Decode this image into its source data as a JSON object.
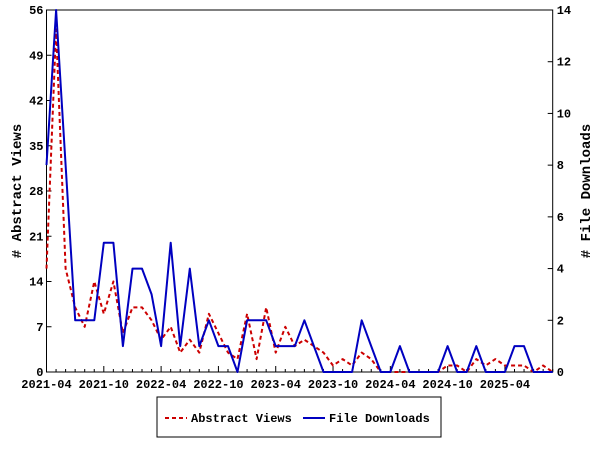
{
  "chart_data": {
    "type": "line",
    "title": "",
    "xlabel": "",
    "ylabel": "# Abstract Views",
    "y2label": "# File Downloads",
    "ylim": [
      0,
      56
    ],
    "y2lim": [
      0,
      14
    ],
    "yticks": [
      0,
      7,
      14,
      21,
      28,
      35,
      42,
      49,
      56
    ],
    "y2ticks": [
      0,
      2,
      4,
      6,
      8,
      10,
      12,
      14
    ],
    "xtick_labels": [
      "2021-04",
      "2021-10",
      "2022-04",
      "2022-10",
      "2023-04",
      "2023-10",
      "2024-04",
      "2024-10",
      "2025-04"
    ],
    "x_start": "2021-04",
    "x_end": "2025-09",
    "grid": false,
    "legend_placement": "bottom",
    "series": [
      {
        "name": "Abstract Views",
        "axis": "left",
        "color": "#cc0000",
        "style": "dashed",
        "values": [
          16,
          53,
          16,
          10,
          7,
          14,
          9,
          14,
          6,
          10,
          10,
          8,
          5,
          7,
          3,
          5,
          3,
          9,
          6,
          3,
          2,
          9,
          2,
          10,
          3,
          7,
          4,
          5,
          4,
          3,
          1,
          2,
          1,
          3,
          2,
          0,
          0,
          0,
          0,
          0,
          0,
          0,
          1,
          1,
          0,
          2,
          1,
          2,
          1,
          1,
          1,
          0,
          1,
          0
        ]
      },
      {
        "name": "File Downloads",
        "axis": "right",
        "color": "#0000c0",
        "style": "solid",
        "values": [
          8,
          14,
          8,
          2,
          2,
          2,
          5,
          5,
          1,
          4,
          4,
          3,
          1,
          5,
          1,
          4,
          1,
          2,
          1,
          1,
          0,
          2,
          2,
          2,
          1,
          1,
          1,
          2,
          1,
          0,
          0,
          0,
          0,
          2,
          1,
          0,
          0,
          1,
          0,
          0,
          0,
          0,
          1,
          0,
          0,
          1,
          0,
          0,
          0,
          1,
          1,
          0,
          0,
          0
        ]
      }
    ]
  }
}
